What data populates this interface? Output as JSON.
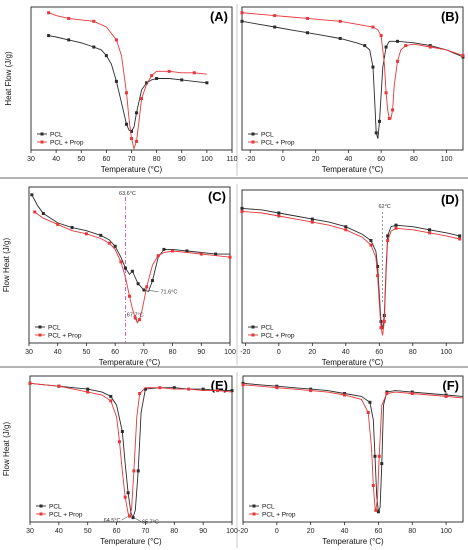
{
  "figure": {
    "sep_color": "#888888",
    "black": "#2b2b2b",
    "red": "#e8373a",
    "ann_magenta": "#c040c0"
  },
  "chart_data": [
    {
      "id": "A",
      "panel_label": "(A)",
      "type": "line",
      "xlabel": "Temperature (°C)",
      "ylabel": "Heat Flow (J/g)",
      "xlim": [
        30,
        110
      ],
      "ylim": [
        0,
        1
      ],
      "xticks": [
        30,
        40,
        50,
        60,
        70,
        80,
        90,
        100,
        110
      ],
      "legend_position": "bottom-left",
      "series": [
        {
          "name": "PCL",
          "color": "black",
          "x": [
            37,
            40,
            45,
            50,
            55,
            58,
            60,
            62,
            64,
            66,
            68,
            69,
            70,
            71,
            72,
            74,
            76,
            78,
            80,
            85,
            90,
            95,
            100
          ],
          "y": [
            0.8,
            0.79,
            0.77,
            0.75,
            0.72,
            0.7,
            0.66,
            0.6,
            0.48,
            0.33,
            0.18,
            0.14,
            0.13,
            0.16,
            0.26,
            0.42,
            0.47,
            0.49,
            0.5,
            0.5,
            0.49,
            0.48,
            0.47
          ]
        },
        {
          "name": "PCL + Prop",
          "color": "red",
          "x": [
            37,
            40,
            45,
            50,
            55,
            60,
            64,
            66,
            68,
            69,
            70,
            71,
            72,
            73,
            74,
            76,
            78,
            80,
            85,
            90,
            95,
            100
          ],
          "y": [
            0.96,
            0.94,
            0.92,
            0.91,
            0.9,
            0.86,
            0.77,
            0.66,
            0.4,
            0.22,
            0.08,
            0.01,
            0.06,
            0.2,
            0.36,
            0.46,
            0.52,
            0.55,
            0.55,
            0.54,
            0.54,
            0.53
          ]
        }
      ]
    },
    {
      "id": "B",
      "panel_label": "(B)",
      "type": "line",
      "xlabel": "Temperature (°C)",
      "ylabel": "",
      "xlim": [
        -25,
        110
      ],
      "ylim": [
        0,
        1
      ],
      "xticks": [
        -20,
        0,
        20,
        40,
        60,
        80,
        100
      ],
      "legend_position": "bottom-left",
      "series": [
        {
          "name": "PCL",
          "color": "black",
          "x": [
            -25,
            -15,
            -5,
            5,
            15,
            25,
            35,
            45,
            50,
            53,
            55,
            56,
            57,
            58,
            59,
            61,
            63,
            65,
            70,
            80,
            90,
            100,
            110
          ],
          "y": [
            0.9,
            0.88,
            0.86,
            0.84,
            0.82,
            0.8,
            0.78,
            0.75,
            0.73,
            0.7,
            0.58,
            0.36,
            0.12,
            0.08,
            0.2,
            0.58,
            0.72,
            0.76,
            0.76,
            0.75,
            0.73,
            0.7,
            0.65
          ]
        },
        {
          "name": "PCL + Prop",
          "color": "red",
          "x": [
            -25,
            -15,
            -5,
            5,
            15,
            25,
            35,
            45,
            55,
            58,
            60,
            62,
            63,
            64,
            65,
            66,
            67,
            68,
            70,
            72,
            75,
            80,
            90,
            100,
            110
          ],
          "y": [
            0.96,
            0.95,
            0.94,
            0.93,
            0.92,
            0.91,
            0.9,
            0.88,
            0.86,
            0.84,
            0.8,
            0.6,
            0.4,
            0.28,
            0.22,
            0.22,
            0.28,
            0.45,
            0.62,
            0.7,
            0.73,
            0.74,
            0.72,
            0.7,
            0.66
          ]
        }
      ]
    },
    {
      "id": "C",
      "panel_label": "(C)",
      "type": "line",
      "xlabel": "Temperature (°C)",
      "ylabel": "Flow Heat (J/g)",
      "xlim": [
        30,
        100
      ],
      "ylim": [
        0,
        1
      ],
      "xticks": [
        30,
        40,
        50,
        60,
        70,
        80,
        90,
        100
      ],
      "legend_position": "bottom-left",
      "annotations": [
        {
          "text": "63.6°C",
          "x": 63.6
        },
        {
          "text": "67.7°C",
          "x": 67.7
        },
        {
          "text": "71.6°C",
          "x": 71.6
        }
      ],
      "series": [
        {
          "name": "PCL",
          "color": "black",
          "x": [
            31,
            33,
            35,
            40,
            45,
            50,
            55,
            58,
            60,
            62,
            63.6,
            65,
            66,
            67,
            68,
            69,
            70,
            71.6,
            73,
            75,
            77,
            80,
            85,
            90,
            95,
            100
          ],
          "y": [
            0.95,
            0.88,
            0.83,
            0.77,
            0.74,
            0.72,
            0.69,
            0.66,
            0.62,
            0.55,
            0.48,
            0.44,
            0.46,
            0.42,
            0.38,
            0.36,
            0.34,
            0.33,
            0.4,
            0.55,
            0.6,
            0.6,
            0.59,
            0.58,
            0.57,
            0.57
          ]
        },
        {
          "name": "PCL + Prop",
          "color": "red",
          "x": [
            32,
            35,
            40,
            45,
            50,
            55,
            58,
            60,
            62,
            63.6,
            65,
            66,
            67,
            67.7,
            68.5,
            69.5,
            71,
            73,
            75,
            77,
            80,
            85,
            90,
            95,
            100
          ],
          "y": [
            0.84,
            0.8,
            0.76,
            0.72,
            0.7,
            0.67,
            0.64,
            0.6,
            0.52,
            0.42,
            0.3,
            0.22,
            0.16,
            0.13,
            0.15,
            0.22,
            0.36,
            0.5,
            0.56,
            0.58,
            0.59,
            0.58,
            0.57,
            0.56,
            0.55
          ]
        }
      ]
    },
    {
      "id": "D",
      "panel_label": "(D)",
      "type": "line",
      "xlabel": "Temperature (°C)",
      "ylabel": "",
      "xlim": [
        -22,
        110
      ],
      "ylim": [
        0,
        1
      ],
      "xticks": [
        -20,
        0,
        20,
        40,
        60,
        80,
        100
      ],
      "legend_position": "bottom-left",
      "annotations": [
        {
          "text": "62°C",
          "x": 62
        }
      ],
      "series": [
        {
          "name": "PCL",
          "color": "black",
          "x": [
            -22,
            -10,
            0,
            10,
            20,
            30,
            40,
            50,
            55,
            58,
            59,
            60,
            61,
            62,
            63,
            64,
            65,
            67,
            70,
            80,
            90,
            100,
            108
          ],
          "y": [
            0.88,
            0.87,
            0.85,
            0.83,
            0.81,
            0.79,
            0.76,
            0.71,
            0.67,
            0.6,
            0.5,
            0.32,
            0.14,
            0.09,
            0.18,
            0.48,
            0.7,
            0.76,
            0.77,
            0.76,
            0.74,
            0.72,
            0.7
          ]
        },
        {
          "name": "PCL + Prop",
          "color": "red",
          "x": [
            -22,
            -10,
            0,
            10,
            20,
            30,
            40,
            50,
            55,
            58,
            59,
            60,
            61,
            62,
            63,
            64,
            65,
            67,
            70,
            80,
            90,
            100,
            108
          ],
          "y": [
            0.86,
            0.85,
            0.83,
            0.81,
            0.79,
            0.77,
            0.74,
            0.69,
            0.64,
            0.56,
            0.44,
            0.26,
            0.1,
            0.05,
            0.14,
            0.44,
            0.67,
            0.73,
            0.75,
            0.74,
            0.72,
            0.7,
            0.68
          ]
        }
      ]
    },
    {
      "id": "E",
      "panel_label": "(E)",
      "type": "line",
      "xlabel": "Temperature (°C)",
      "ylabel": "Flow Heat (J/g)",
      "xlim": [
        30,
        100
      ],
      "ylim": [
        0,
        1
      ],
      "xticks": [
        30,
        40,
        50,
        60,
        70,
        80,
        90,
        100
      ],
      "legend_position": "bottom-left",
      "annotations": [
        {
          "text": "64.5°C",
          "x": 64.5
        },
        {
          "text": "65.7°C",
          "x": 65.7
        }
      ],
      "series": [
        {
          "name": "PCL",
          "color": "black",
          "x": [
            30,
            35,
            40,
            45,
            50,
            55,
            58,
            60,
            62,
            63,
            64,
            65,
            65.7,
            66.5,
            67.5,
            68.5,
            70,
            75,
            80,
            85,
            90,
            95,
            100
          ],
          "y": [
            0.95,
            0.94,
            0.93,
            0.92,
            0.91,
            0.89,
            0.86,
            0.8,
            0.62,
            0.4,
            0.2,
            0.06,
            0.03,
            0.08,
            0.35,
            0.75,
            0.91,
            0.92,
            0.92,
            0.91,
            0.91,
            0.9,
            0.9
          ]
        },
        {
          "name": "PCL + Prop",
          "color": "red",
          "x": [
            30,
            35,
            40,
            45,
            50,
            55,
            58,
            60,
            61,
            62,
            63,
            64,
            64.5,
            65.2,
            66,
            67,
            68,
            70,
            75,
            80,
            85,
            90,
            95,
            100
          ],
          "y": [
            0.95,
            0.94,
            0.93,
            0.91,
            0.89,
            0.87,
            0.83,
            0.72,
            0.55,
            0.35,
            0.17,
            0.06,
            0.04,
            0.09,
            0.35,
            0.72,
            0.88,
            0.92,
            0.92,
            0.91,
            0.91,
            0.9,
            0.9,
            0.89
          ]
        }
      ]
    },
    {
      "id": "F",
      "panel_label": "(F)",
      "type": "line",
      "xlabel": "Temperature (°C)",
      "ylabel": "",
      "xlim": [
        -20,
        110
      ],
      "ylim": [
        0,
        1
      ],
      "xticks": [
        -20,
        0,
        20,
        40,
        60,
        80,
        100
      ],
      "legend_position": "bottom-left",
      "series": [
        {
          "name": "PCL",
          "color": "black",
          "x": [
            -20,
            -10,
            0,
            10,
            20,
            30,
            40,
            50,
            55,
            57,
            58,
            59,
            60,
            61,
            62,
            63,
            65,
            70,
            80,
            90,
            100,
            110
          ],
          "y": [
            0.95,
            0.94,
            0.93,
            0.92,
            0.91,
            0.9,
            0.88,
            0.86,
            0.82,
            0.7,
            0.45,
            0.18,
            0.07,
            0.1,
            0.4,
            0.8,
            0.89,
            0.9,
            0.89,
            0.88,
            0.87,
            0.86
          ]
        },
        {
          "name": "PCL + Prop",
          "color": "red",
          "x": [
            -20,
            -10,
            0,
            10,
            20,
            30,
            40,
            50,
            54,
            56,
            57,
            58,
            58.5,
            59.5,
            60.5,
            62,
            65,
            70,
            80,
            90,
            100,
            110
          ],
          "y": [
            0.94,
            0.93,
            0.92,
            0.91,
            0.9,
            0.89,
            0.87,
            0.84,
            0.75,
            0.5,
            0.25,
            0.1,
            0.08,
            0.16,
            0.45,
            0.8,
            0.88,
            0.89,
            0.88,
            0.87,
            0.86,
            0.85
          ]
        }
      ]
    }
  ]
}
